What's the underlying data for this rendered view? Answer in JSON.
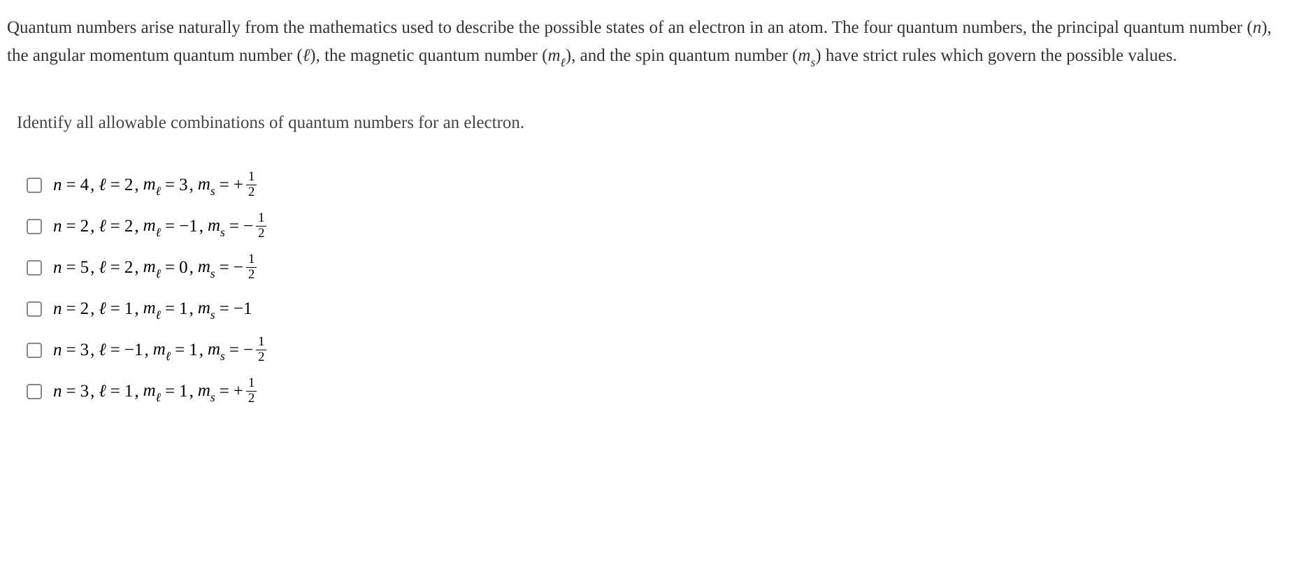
{
  "intro": {
    "text": "Quantum numbers arise naturally from the mathematics used to describe the possible states of an electron in an atom. The four quantum numbers, the principal quantum number (n), the angular momentum quantum number (ℓ), the magnetic quantum number (mℓ), and the spin quantum number (ms) have strict rules which govern the possible values."
  },
  "question": {
    "text": "Identify all allowable combinations of quantum numbers for an electron."
  },
  "options": [
    {
      "n": "4",
      "l": "2",
      "ml": "3",
      "ms_sign": "+",
      "ms_num": "1",
      "ms_den": "2",
      "ms_int": null
    },
    {
      "n": "2",
      "l": "2",
      "ml": "−1",
      "ms_sign": "−",
      "ms_num": "1",
      "ms_den": "2",
      "ms_int": null
    },
    {
      "n": "5",
      "l": "2",
      "ml": "0",
      "ms_sign": "−",
      "ms_num": "1",
      "ms_den": "2",
      "ms_int": null
    },
    {
      "n": "2",
      "l": "1",
      "ml": "1",
      "ms_sign": "",
      "ms_num": null,
      "ms_den": null,
      "ms_int": "−1"
    },
    {
      "n": "3",
      "l": "−1",
      "ml": "1",
      "ms_sign": "−",
      "ms_num": "1",
      "ms_den": "2",
      "ms_int": null
    },
    {
      "n": "3",
      "l": "1",
      "ml": "1",
      "ms_sign": "+",
      "ms_num": "1",
      "ms_den": "2",
      "ms_int": null
    }
  ],
  "symbols": {
    "n": "n",
    "l": "ℓ",
    "m": "m",
    "sub_l": "ℓ",
    "sub_s": "s",
    "eq": "=",
    "comma": ","
  },
  "colors": {
    "text": "#000000",
    "intro_text": "#333333",
    "question_text": "#444444",
    "checkbox_border": "#888888",
    "background": "#ffffff"
  },
  "typography": {
    "body_fontsize": 25,
    "font_family": "Georgia, Times New Roman, serif"
  }
}
